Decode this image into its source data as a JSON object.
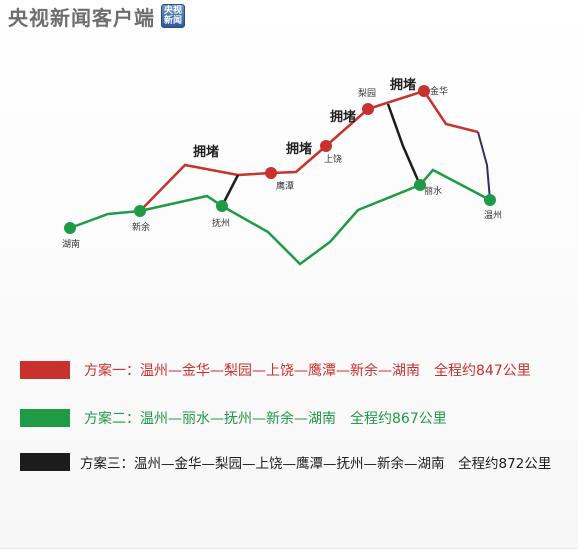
{
  "header": {
    "title": "央视新闻客户端",
    "logo_line1": "央视",
    "logo_line2": "新闻",
    "logo_icon": "cctv-news-logo-icon"
  },
  "colors": {
    "route1": "#c9312c",
    "route2": "#1f9a45",
    "route3": "#1c1c1c",
    "route_extra": "#3b2a6a"
  },
  "jam_label": "拥堵",
  "cities": {
    "hunan": "湖南",
    "xinyu": "新余",
    "fuzhou": "抚州",
    "yingtan": "鹰潭",
    "shangrao": "上饶",
    "liyuan": "梨园",
    "jinhua": "金华",
    "lishui": "丽水",
    "wenzhou": "温州"
  },
  "legend": [
    {
      "text": "方案一：温州—金华—梨园—上饶—鹰潭—新余—湖南　全程约847公里",
      "color": "#c9312c"
    },
    {
      "text": "方案二：温州—丽水—抚州—新余—湖南　全程约867公里",
      "color": "#1f9a45"
    },
    {
      "text": "方案三：温州—金华—梨园—上饶—鹰潭—抚州—新余—湖南　全程约872公里",
      "color": "#1c1c1c"
    }
  ]
}
